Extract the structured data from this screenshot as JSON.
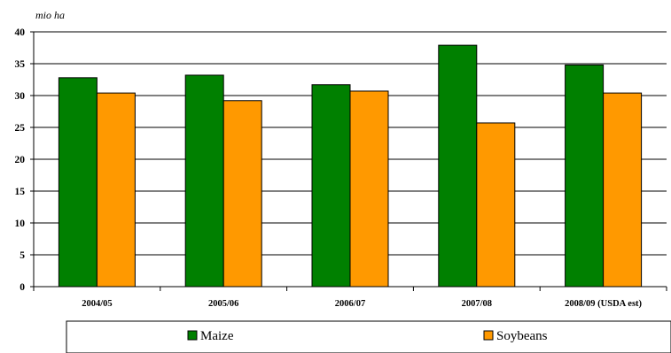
{
  "chart_data": {
    "type": "bar",
    "unit_label": "mio ha",
    "categories": [
      "2004/05",
      "2005/06",
      "2006/07",
      "2007/08",
      "2008/09 (USDA est)"
    ],
    "series": [
      {
        "name": "Maize",
        "color": "#008000",
        "values": [
          32.8,
          33.2,
          31.7,
          37.9,
          34.8
        ]
      },
      {
        "name": "Soybeans",
        "color": "#FF9900",
        "values": [
          30.4,
          29.2,
          30.7,
          25.7,
          30.4
        ]
      }
    ],
    "ylim": [
      0,
      40
    ],
    "yticks": [
      0,
      5,
      10,
      15,
      20,
      25,
      30,
      35,
      40
    ],
    "grid": true,
    "legend_position": "bottom"
  }
}
